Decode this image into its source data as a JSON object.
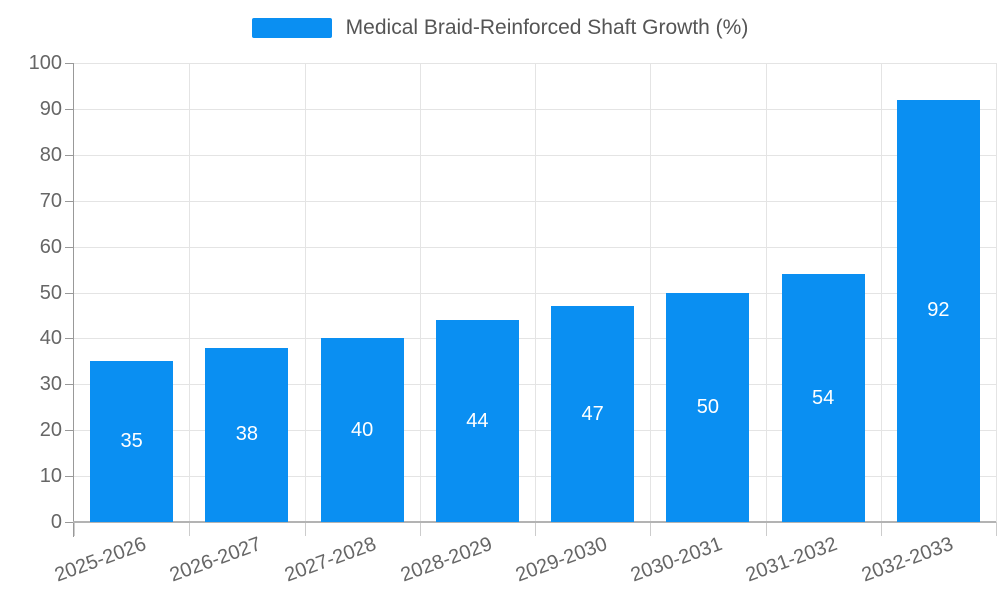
{
  "colors": {
    "bar": "#0A8FF2",
    "grid": "#e4e4e4",
    "axis": "#999999",
    "x_axis_line": "#b3b3b3",
    "x_tick": "#cccccc",
    "tick_text": "#666666",
    "legend_text": "#555555",
    "value_label": "#ffffff",
    "background": "#ffffff"
  },
  "chart_data": {
    "type": "bar",
    "title": "Medical Braid-Reinforced Shaft Growth (%)",
    "categories": [
      "2025-2026",
      "2026-2027",
      "2027-2028",
      "2028-2029",
      "2029-2030",
      "2030-2031",
      "2031-2032",
      "2032-2033"
    ],
    "series": [
      {
        "name": "Medical Braid-Reinforced Shaft Growth (%)",
        "values": [
          35,
          38,
          40,
          44,
          47,
          50,
          54,
          92
        ]
      }
    ],
    "bar_value_labels": [
      "35",
      "38",
      "40",
      "44",
      "47",
      "50",
      "54",
      "92"
    ],
    "xlabel": "",
    "ylabel": "",
    "ylim": [
      0,
      100
    ],
    "ytick_interval": 10,
    "yticks": [
      0,
      10,
      20,
      30,
      40,
      50,
      60,
      70,
      80,
      90,
      100
    ],
    "grid": true,
    "legend_position": "top-center",
    "x_label_rotation_deg": -20,
    "bar_labels_inside": true
  }
}
